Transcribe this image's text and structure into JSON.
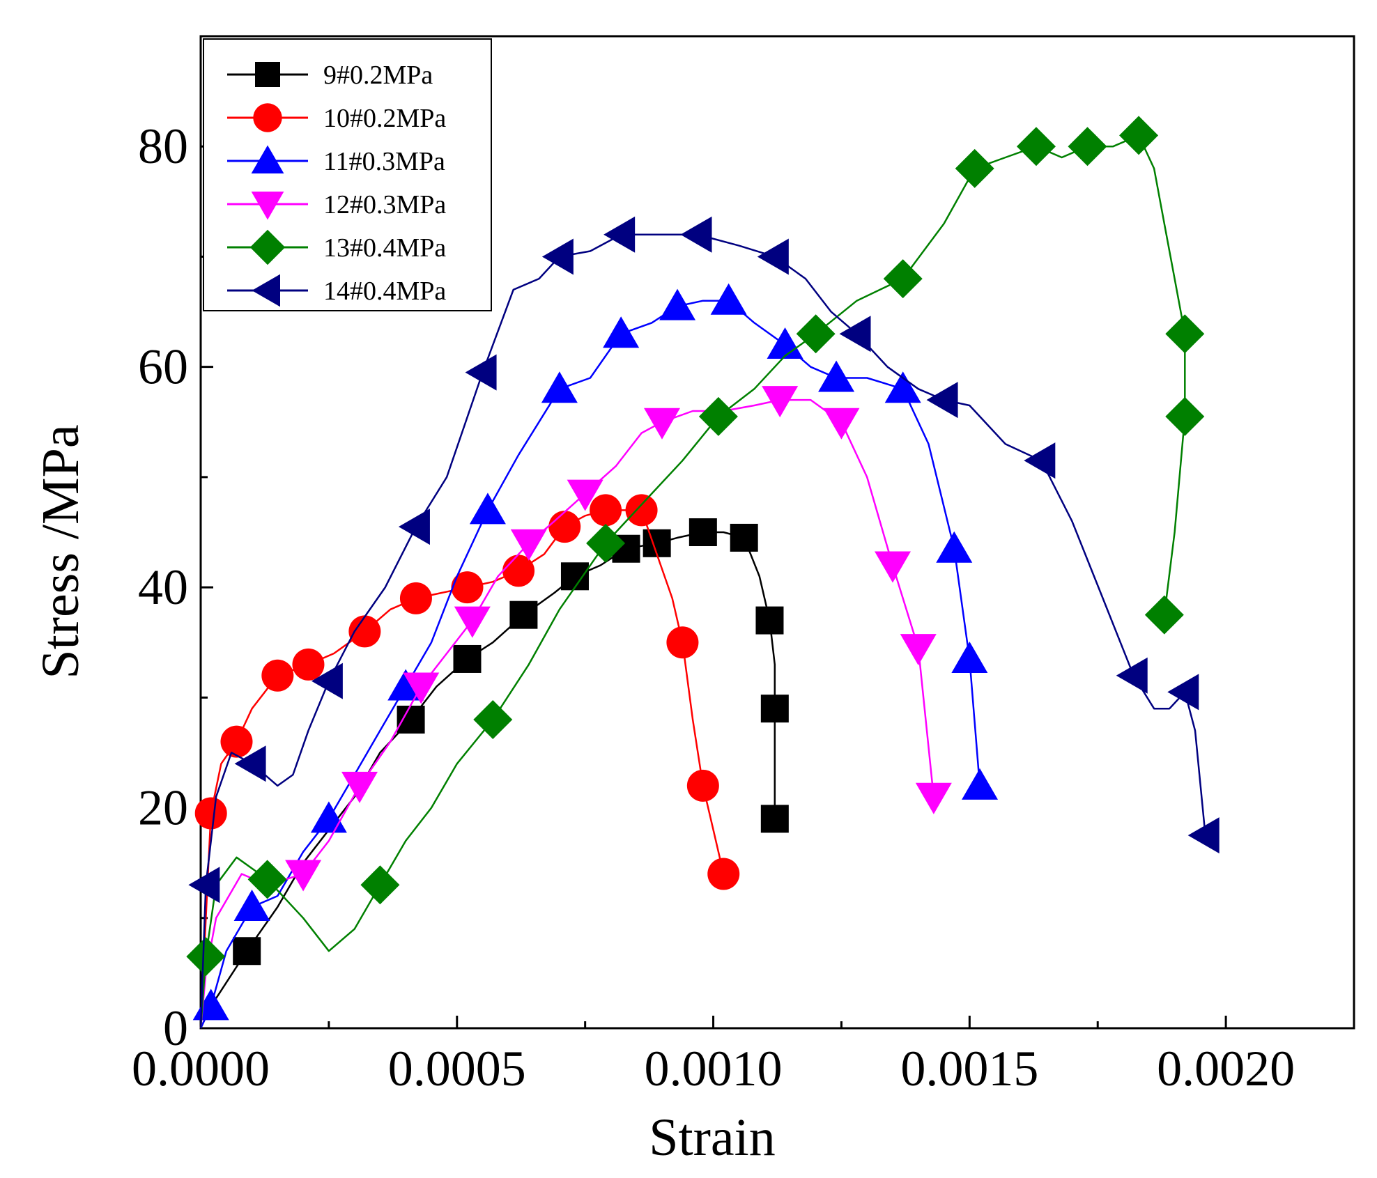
{
  "chart_data": {
    "type": "line",
    "xlabel": "Strain",
    "ylabel": "Stress /MPa",
    "xlim": [
      0,
      0.00225
    ],
    "ylim": [
      0,
      90
    ],
    "x_ticks": [
      0.0,
      0.0005,
      0.001,
      0.0015,
      0.002
    ],
    "x_tick_labels": [
      "0.0000",
      "0.0005",
      "0.0010",
      "0.0015",
      "0.0020"
    ],
    "y_ticks": [
      0,
      20,
      40,
      60,
      80
    ],
    "y_tick_labels": [
      "0",
      "20",
      "40",
      "60",
      "80"
    ],
    "legend_position": "top-left",
    "grid": false,
    "series": [
      {
        "name": "9#0.2MPa",
        "color": "#000000",
        "marker": "square",
        "x": [
          0.0,
          2e-05,
          9e-05,
          0.00015,
          0.0002,
          0.00025,
          0.0003,
          0.00035,
          0.00041,
          0.00046,
          0.00052,
          0.00057,
          0.00063,
          0.00069,
          0.00073,
          0.00078,
          0.00083,
          0.00089,
          0.00093,
          0.00098,
          0.00102,
          0.00106,
          0.00109,
          0.00111,
          0.00112,
          0.00112,
          0.00112,
          0.00112
        ],
        "y": [
          0,
          2,
          7,
          11,
          15,
          18,
          21,
          25,
          28,
          31,
          33.5,
          35,
          37.5,
          39.5,
          41,
          42,
          43.5,
          44,
          44.5,
          45,
          45,
          44.5,
          41,
          37,
          33,
          29,
          24,
          19
        ],
        "marker_indices": [
          2,
          8,
          10,
          12,
          14,
          16,
          17,
          19,
          21,
          23,
          25,
          27
        ]
      },
      {
        "name": "10#0.2MPa",
        "color": "#ff0000",
        "marker": "circle",
        "x": [
          0.0,
          1e-05,
          2e-05,
          4e-05,
          7e-05,
          0.0001,
          0.00015,
          0.00021,
          0.00026,
          0.00032,
          0.00037,
          0.00042,
          0.00047,
          0.00052,
          0.00057,
          0.00062,
          0.00067,
          0.00071,
          0.00075,
          0.00079,
          0.00083,
          0.00086,
          0.00089,
          0.00092,
          0.00094,
          0.00096,
          0.00098,
          0.001,
          0.00102
        ],
        "y": [
          0,
          10,
          19.5,
          24,
          26,
          29,
          32,
          33,
          34,
          36,
          38,
          39,
          39.5,
          40,
          40.5,
          41.5,
          43,
          45.5,
          46.5,
          47,
          47,
          47,
          43,
          39,
          35,
          28,
          22,
          18,
          14
        ],
        "marker_indices": [
          2,
          4,
          6,
          7,
          9,
          11,
          13,
          15,
          17,
          19,
          21,
          24,
          26,
          28
        ]
      },
      {
        "name": "11#0.3MPa",
        "color": "#0000ff",
        "marker": "triangle-up",
        "x": [
          0.0,
          2e-05,
          5e-05,
          0.0001,
          0.00015,
          0.0002,
          0.00025,
          0.0003,
          0.00035,
          0.0004,
          0.00045,
          0.0005,
          0.00056,
          0.00062,
          0.0007,
          0.00076,
          0.00082,
          0.00088,
          0.00093,
          0.00098,
          0.00103,
          0.00108,
          0.00114,
          0.00119,
          0.00124,
          0.0013,
          0.00137,
          0.00142,
          0.00147,
          0.0015,
          0.00152
        ],
        "y": [
          0,
          2,
          7,
          11,
          12,
          16,
          19,
          23,
          27,
          31,
          35,
          41,
          47,
          52,
          58,
          59,
          63,
          64,
          65.5,
          66,
          66,
          64,
          62,
          60,
          59,
          59,
          58,
          53,
          43.5,
          33.5,
          22
        ],
        "marker_indices": [
          1,
          3,
          6,
          9,
          12,
          14,
          16,
          18,
          20,
          22,
          24,
          26,
          28,
          29,
          30
        ]
      },
      {
        "name": "12#0.3MPa",
        "color": "#ff00ff",
        "marker": "triangle-down",
        "x": [
          0.0,
          1e-05,
          3e-05,
          8e-05,
          0.00013,
          0.0002,
          0.00025,
          0.00031,
          0.00037,
          0.00043,
          0.00048,
          0.00053,
          0.00058,
          0.00064,
          0.00069,
          0.00075,
          0.00081,
          0.00086,
          0.0009,
          0.00096,
          0.00102,
          0.00108,
          0.00113,
          0.00119,
          0.00125,
          0.0013,
          0.00135,
          0.0014,
          0.00143
        ],
        "y": [
          0,
          5,
          10,
          14,
          13,
          14,
          17,
          22,
          26,
          31,
          34,
          37,
          41,
          44,
          46,
          48.5,
          51,
          54,
          55,
          56,
          56,
          56.5,
          57,
          57,
          55,
          50,
          42,
          34.5,
          21
        ],
        "marker_indices": [
          5,
          7,
          9,
          11,
          13,
          15,
          18,
          22,
          24,
          26,
          27,
          28
        ]
      },
      {
        "name": "13#0.4MPa",
        "color": "#008000",
        "marker": "diamond",
        "x": [
          0.0,
          1e-05,
          3e-05,
          7e-05,
          0.00013,
          0.0002,
          0.00025,
          0.0003,
          0.00035,
          0.0004,
          0.00045,
          0.0005,
          0.00057,
          0.00064,
          0.0007,
          0.00079,
          0.00087,
          0.00094,
          0.00101,
          0.00108,
          0.00114,
          0.0012,
          0.00128,
          0.00137,
          0.00145,
          0.00151,
          0.00157,
          0.00163,
          0.00168,
          0.00173,
          0.00178,
          0.00183,
          0.00186,
          0.00188,
          0.0019,
          0.00192,
          0.00192,
          0.0019,
          0.00188
        ],
        "y": [
          0,
          6.5,
          13,
          15.5,
          13.5,
          10,
          7,
          9,
          13,
          17,
          20,
          24,
          28,
          33,
          38,
          44,
          48,
          51.5,
          55.5,
          58,
          61,
          63,
          66,
          68,
          73,
          78,
          79,
          80,
          79,
          80,
          80,
          81,
          78,
          73,
          68,
          63,
          55.5,
          45,
          37.5
        ],
        "marker_indices": [
          1,
          4,
          8,
          12,
          15,
          18,
          21,
          23,
          25,
          27,
          29,
          31,
          35,
          36,
          38
        ]
      },
      {
        "name": "14#0.4MPa",
        "color": "#000080",
        "marker": "triangle-left",
        "x": [
          0.0,
          1e-05,
          3e-05,
          6e-05,
          0.0001,
          0.00015,
          0.00018,
          0.00021,
          0.00025,
          0.0003,
          0.00036,
          0.00042,
          0.00048,
          0.00055,
          0.00061,
          0.00066,
          0.0007,
          0.00076,
          0.00082,
          0.0009,
          0.00097,
          0.00105,
          0.00112,
          0.00118,
          0.00123,
          0.00128,
          0.00134,
          0.0014,
          0.00145,
          0.0015,
          0.00157,
          0.00164,
          0.0017,
          0.00176,
          0.00182,
          0.00186,
          0.00189,
          0.00192,
          0.00194,
          0.00196
        ],
        "y": [
          0,
          13,
          21,
          25,
          24,
          22,
          23,
          27,
          31.5,
          36,
          40,
          45.5,
          50,
          59.5,
          67,
          68,
          70,
          70.5,
          72,
          72,
          72,
          71,
          70,
          68,
          65,
          63,
          60,
          58,
          57,
          56.5,
          53,
          51.5,
          46,
          39,
          32,
          29,
          29,
          30.5,
          27,
          17.5
        ],
        "marker_indices": [
          1,
          4,
          8,
          11,
          13,
          16,
          18,
          20,
          22,
          25,
          28,
          31,
          34,
          37,
          39
        ]
      }
    ]
  }
}
